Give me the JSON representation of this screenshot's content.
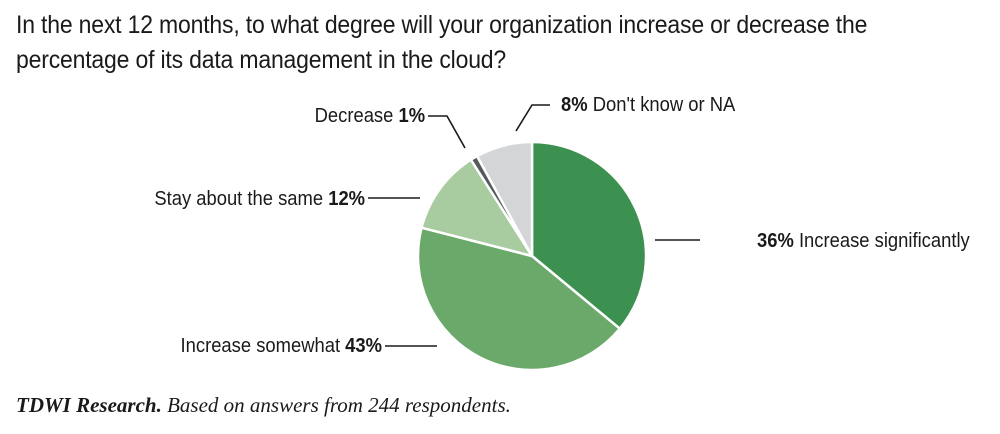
{
  "title": "In the next 12 months, to what degree will your organization increase or decrease the percentage of its data management in the cloud?",
  "source": {
    "org": "TDWI Research.",
    "note": " Based on answers from 244 respondents."
  },
  "chart_data": {
    "type": "pie",
    "title": "In the next 12 months, to what degree will your organization increase or decrease the percentage of its data management in the cloud?",
    "start": "12 o'clock, clockwise",
    "slices": [
      {
        "label": "Increase significantly",
        "value": 36,
        "display": "36%",
        "color": "#3d9150"
      },
      {
        "label": "Increase somewhat",
        "value": 43,
        "display": "43%",
        "color": "#6ba96b"
      },
      {
        "label": "Stay about the same",
        "value": 12,
        "display": "12%",
        "color": "#a9cba0"
      },
      {
        "label": "Decrease",
        "value": 1,
        "display": "1%",
        "color": "#555a5c"
      },
      {
        "label": "Don't know or NA",
        "value": 8,
        "display": "8%",
        "color": "#d3d5d6"
      }
    ]
  }
}
